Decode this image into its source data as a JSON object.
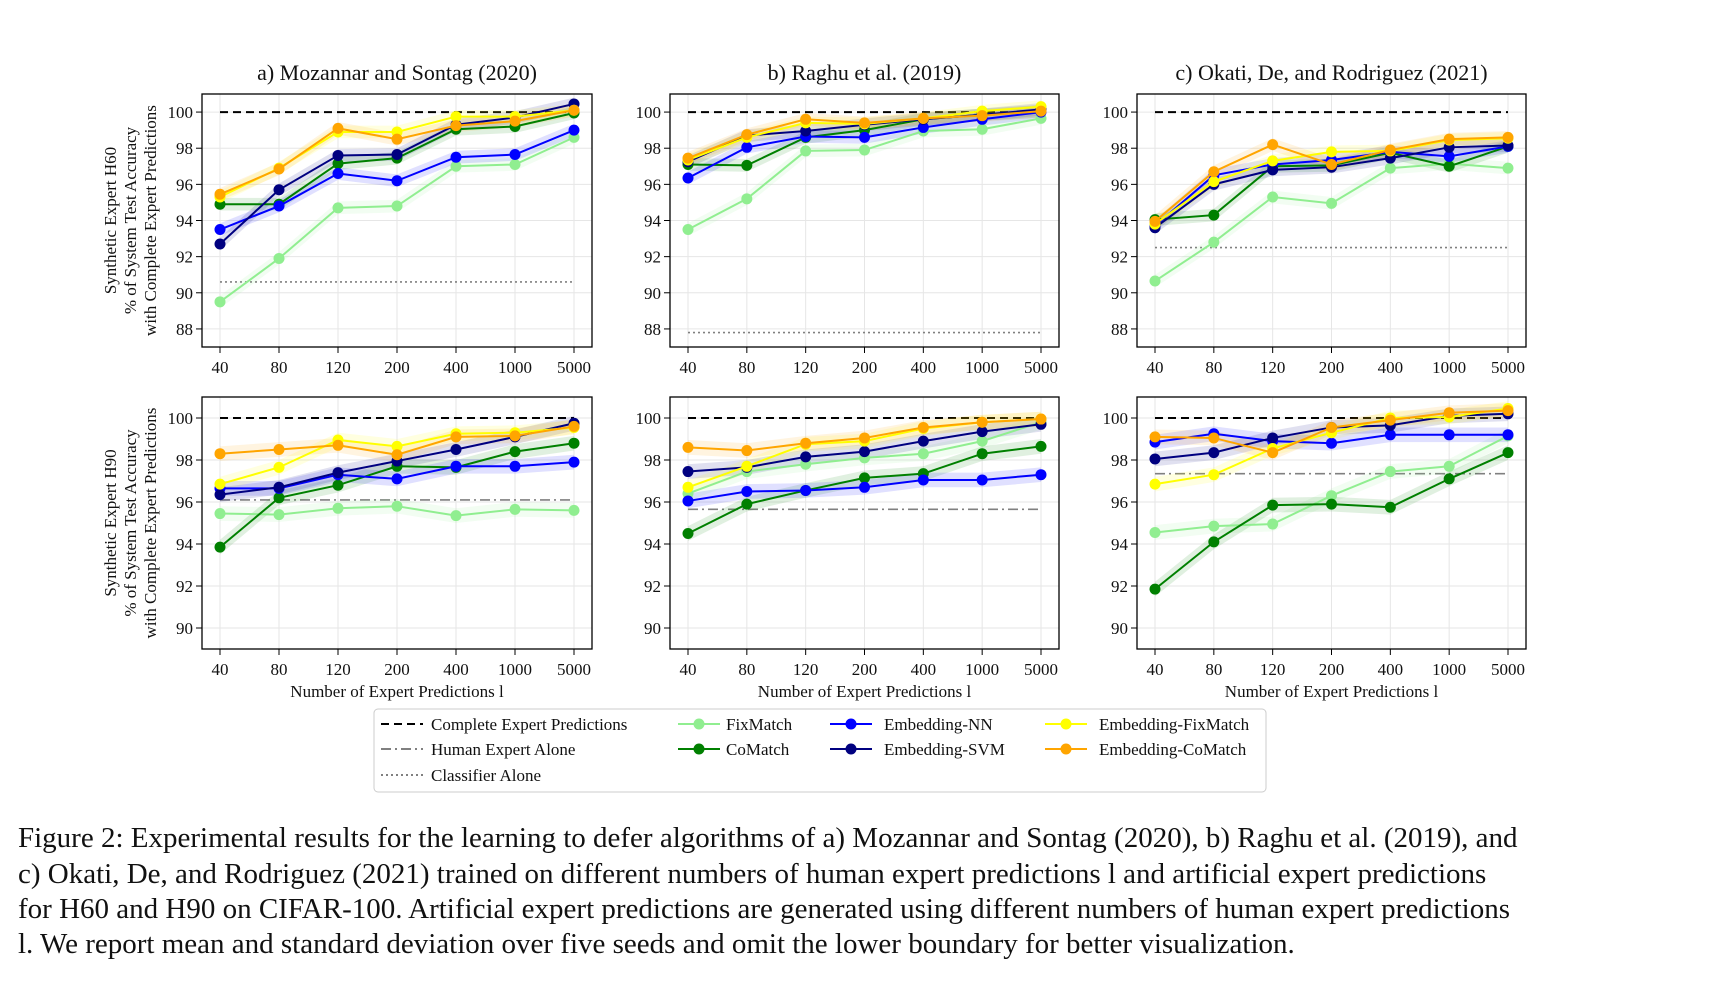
{
  "chart_data": {
    "x_categories": [
      "40",
      "80",
      "120",
      "200",
      "400",
      "1000",
      "5000"
    ],
    "colors": {
      "FixMatch": "#90ee90",
      "CoMatch": "#008000",
      "Embedding-NN": "#0000ff",
      "Embedding-SVM": "#000080",
      "Embedding-FixMatch": "#ffff00",
      "Embedding-CoMatch": "#ffa500"
    },
    "legend": {
      "placement": "bottom-center",
      "entries": [
        {
          "label": "Complete Expert Predictions",
          "style": "dashed",
          "color": "#000000"
        },
        {
          "label": "Human Expert Alone",
          "style": "dashdot",
          "color": "#808080"
        },
        {
          "label": "Classifier Alone",
          "style": "dotted",
          "color": "#808080"
        },
        {
          "label": "FixMatch",
          "style": "marker-line",
          "color": "#90ee90"
        },
        {
          "label": "CoMatch",
          "style": "marker-line",
          "color": "#008000"
        },
        {
          "label": "Embedding-NN",
          "style": "marker-line",
          "color": "#0000ff"
        },
        {
          "label": "Embedding-SVM",
          "style": "marker-line",
          "color": "#000080"
        },
        {
          "label": "Embedding-FixMatch",
          "style": "marker-line",
          "color": "#ffff00"
        },
        {
          "label": "Embedding-CoMatch",
          "style": "marker-line",
          "color": "#ffa500"
        }
      ]
    },
    "row_ylabels": [
      [
        "Synthetic Expert H60",
        "% of System Test Accuracy",
        "with Complete Expert Predictions"
      ],
      [
        "Synthetic Expert H90",
        "% of System Test Accuracy",
        "with Complete Expert Predictions"
      ]
    ],
    "panels": [
      {
        "type": "line",
        "row": 0,
        "col": 0,
        "title": "a) Mozannar and Sontag (2020)",
        "xlabel": "",
        "ylim": [
          87,
          101
        ],
        "yticks": [
          88,
          90,
          92,
          94,
          96,
          98,
          100
        ],
        "grid": true,
        "reference": {
          "complete": 100,
          "classifier": 90.6
        },
        "series": [
          {
            "name": "FixMatch",
            "values": [
              89.5,
              91.9,
              94.7,
              94.8,
              97.0,
              97.1,
              98.6
            ]
          },
          {
            "name": "CoMatch",
            "values": [
              94.9,
              94.9,
              97.15,
              97.45,
              99.05,
              99.2,
              99.95
            ]
          },
          {
            "name": "Embedding-NN",
            "values": [
              93.5,
              94.8,
              96.6,
              96.2,
              97.5,
              97.65,
              99.0
            ]
          },
          {
            "name": "Embedding-SVM",
            "values": [
              92.7,
              95.7,
              97.6,
              97.65,
              99.3,
              99.7,
              100.45
            ]
          },
          {
            "name": "Embedding-FixMatch",
            "values": [
              95.3,
              96.9,
              98.9,
              98.9,
              99.75,
              99.75,
              100.1
            ]
          },
          {
            "name": "Embedding-CoMatch",
            "values": [
              95.45,
              96.85,
              99.1,
              98.5,
              99.25,
              99.5,
              100.1
            ]
          }
        ]
      },
      {
        "type": "line",
        "row": 0,
        "col": 1,
        "title": "b) Raghu et al. (2019)",
        "xlabel": "",
        "ylim": [
          87,
          101
        ],
        "yticks": [
          88,
          90,
          92,
          94,
          96,
          98,
          100
        ],
        "grid": true,
        "reference": {
          "complete": 100,
          "classifier": 87.8
        },
        "series": [
          {
            "name": "FixMatch",
            "values": [
              93.5,
              95.2,
              97.85,
              97.9,
              98.95,
              99.05,
              99.65
            ]
          },
          {
            "name": "CoMatch",
            "values": [
              97.1,
              97.05,
              98.6,
              99.0,
              99.6,
              99.85,
              100.05
            ]
          },
          {
            "name": "Embedding-NN",
            "values": [
              96.35,
              98.05,
              98.65,
              98.6,
              99.15,
              99.6,
              100.0
            ]
          },
          {
            "name": "Embedding-SVM",
            "values": [
              97.25,
              98.7,
              98.95,
              99.3,
              99.6,
              99.85,
              100.15
            ]
          },
          {
            "name": "Embedding-FixMatch",
            "values": [
              97.35,
              98.6,
              99.4,
              99.35,
              99.65,
              100.05,
              100.3
            ]
          },
          {
            "name": "Embedding-CoMatch",
            "values": [
              97.45,
              98.75,
              99.6,
              99.4,
              99.65,
              99.8,
              100.05
            ]
          }
        ]
      },
      {
        "type": "line",
        "row": 0,
        "col": 2,
        "title": "c) Okati, De, and Rodriguez (2021)",
        "xlabel": "",
        "ylim": [
          87,
          101
        ],
        "yticks": [
          88,
          90,
          92,
          94,
          96,
          98,
          100
        ],
        "grid": true,
        "reference": {
          "complete": 100,
          "classifier": 92.5
        },
        "series": [
          {
            "name": "FixMatch",
            "values": [
              90.65,
              92.8,
              95.3,
              94.95,
              96.9,
              97.15,
              96.9
            ]
          },
          {
            "name": "CoMatch",
            "values": [
              94.05,
              94.3,
              97.0,
              97.05,
              97.75,
              97.0,
              98.1
            ]
          },
          {
            "name": "Embedding-NN",
            "values": [
              93.7,
              96.5,
              97.1,
              97.35,
              97.8,
              97.55,
              98.1
            ]
          },
          {
            "name": "Embedding-SVM",
            "values": [
              93.6,
              96.0,
              96.8,
              96.95,
              97.45,
              98.05,
              98.15
            ]
          },
          {
            "name": "Embedding-FixMatch",
            "values": [
              93.8,
              96.15,
              97.3,
              97.8,
              97.85,
              98.45,
              98.55
            ]
          },
          {
            "name": "Embedding-CoMatch",
            "values": [
              93.95,
              96.7,
              98.2,
              97.1,
              97.9,
              98.5,
              98.6
            ]
          }
        ]
      },
      {
        "type": "line",
        "row": 1,
        "col": 0,
        "title": "",
        "xlabel": "Number of Expert Predictions l",
        "ylim": [
          89,
          101
        ],
        "yticks": [
          90,
          92,
          94,
          96,
          98,
          100
        ],
        "grid": true,
        "reference": {
          "complete": 100,
          "human": 96.1
        },
        "series": [
          {
            "name": "FixMatch",
            "values": [
              95.45,
              95.4,
              95.7,
              95.8,
              95.35,
              95.65,
              95.6
            ]
          },
          {
            "name": "CoMatch",
            "values": [
              93.85,
              96.2,
              96.8,
              97.7,
              97.65,
              98.4,
              98.8
            ]
          },
          {
            "name": "Embedding-NN",
            "values": [
              96.65,
              96.65,
              97.3,
              97.1,
              97.7,
              97.7,
              97.9
            ]
          },
          {
            "name": "Embedding-SVM",
            "values": [
              96.35,
              96.7,
              97.4,
              97.95,
              98.5,
              99.1,
              99.75
            ]
          },
          {
            "name": "Embedding-FixMatch",
            "values": [
              96.85,
              97.65,
              98.95,
              98.65,
              99.25,
              99.3,
              99.55
            ]
          },
          {
            "name": "Embedding-CoMatch",
            "values": [
              98.3,
              98.5,
              98.7,
              98.25,
              99.1,
              99.15,
              99.6
            ]
          }
        ]
      },
      {
        "type": "line",
        "row": 1,
        "col": 1,
        "title": "",
        "xlabel": "Number of Expert Predictions l",
        "ylim": [
          89,
          101
        ],
        "yticks": [
          90,
          92,
          94,
          96,
          98,
          100
        ],
        "grid": true,
        "reference": {
          "complete": 100,
          "human": 95.65
        },
        "series": [
          {
            "name": "FixMatch",
            "values": [
              96.4,
              97.45,
              97.8,
              98.1,
              98.3,
              98.9,
              99.8
            ]
          },
          {
            "name": "CoMatch",
            "values": [
              94.5,
              95.9,
              96.55,
              97.15,
              97.35,
              98.3,
              98.65
            ]
          },
          {
            "name": "Embedding-NN",
            "values": [
              96.05,
              96.5,
              96.55,
              96.7,
              97.05,
              97.05,
              97.3
            ]
          },
          {
            "name": "Embedding-SVM",
            "values": [
              97.45,
              97.65,
              98.15,
              98.4,
              98.9,
              99.35,
              99.7
            ]
          },
          {
            "name": "Embedding-FixMatch",
            "values": [
              96.7,
              97.7,
              98.75,
              98.9,
              99.5,
              99.8,
              99.95
            ]
          },
          {
            "name": "Embedding-CoMatch",
            "values": [
              98.6,
              98.45,
              98.8,
              99.05,
              99.55,
              99.8,
              99.95
            ]
          }
        ]
      },
      {
        "type": "line",
        "row": 1,
        "col": 2,
        "title": "",
        "xlabel": "Number of Expert Predictions l",
        "ylim": [
          89,
          101
        ],
        "yticks": [
          90,
          92,
          94,
          96,
          98,
          100
        ],
        "grid": true,
        "reference": {
          "complete": 100,
          "human": 97.35
        },
        "series": [
          {
            "name": "FixMatch",
            "values": [
              94.55,
              94.85,
              94.95,
              96.3,
              97.45,
              97.7,
              99.15
            ]
          },
          {
            "name": "CoMatch",
            "values": [
              91.85,
              94.1,
              95.85,
              95.9,
              95.75,
              97.1,
              98.35
            ]
          },
          {
            "name": "Embedding-NN",
            "values": [
              98.85,
              99.25,
              98.9,
              98.8,
              99.2,
              99.2,
              99.2
            ]
          },
          {
            "name": "Embedding-SVM",
            "values": [
              98.05,
              98.35,
              99.05,
              99.55,
              99.65,
              100.1,
              100.2
            ]
          },
          {
            "name": "Embedding-FixMatch",
            "values": [
              96.85,
              97.3,
              98.55,
              99.3,
              100.0,
              100.05,
              100.45
            ]
          },
          {
            "name": "Embedding-CoMatch",
            "values": [
              99.1,
              99.05,
              98.35,
              99.55,
              99.9,
              100.25,
              100.35
            ]
          }
        ]
      }
    ]
  },
  "caption": [
    "Figure 2: Experimental results for the learning to defer algorithms of a) Mozannar and Sontag (2020), b) Raghu et al. (2019), and",
    "c) Okati, De, and Rodriguez (2021) trained on different numbers of human expert predictions l and artificial expert predictions",
    "for H60 and H90 on CIFAR-100. Artificial expert predictions are generated using different numbers of human expert predictions",
    "l. We report mean and standard deviation over five seeds and omit the lower boundary for better visualization."
  ]
}
